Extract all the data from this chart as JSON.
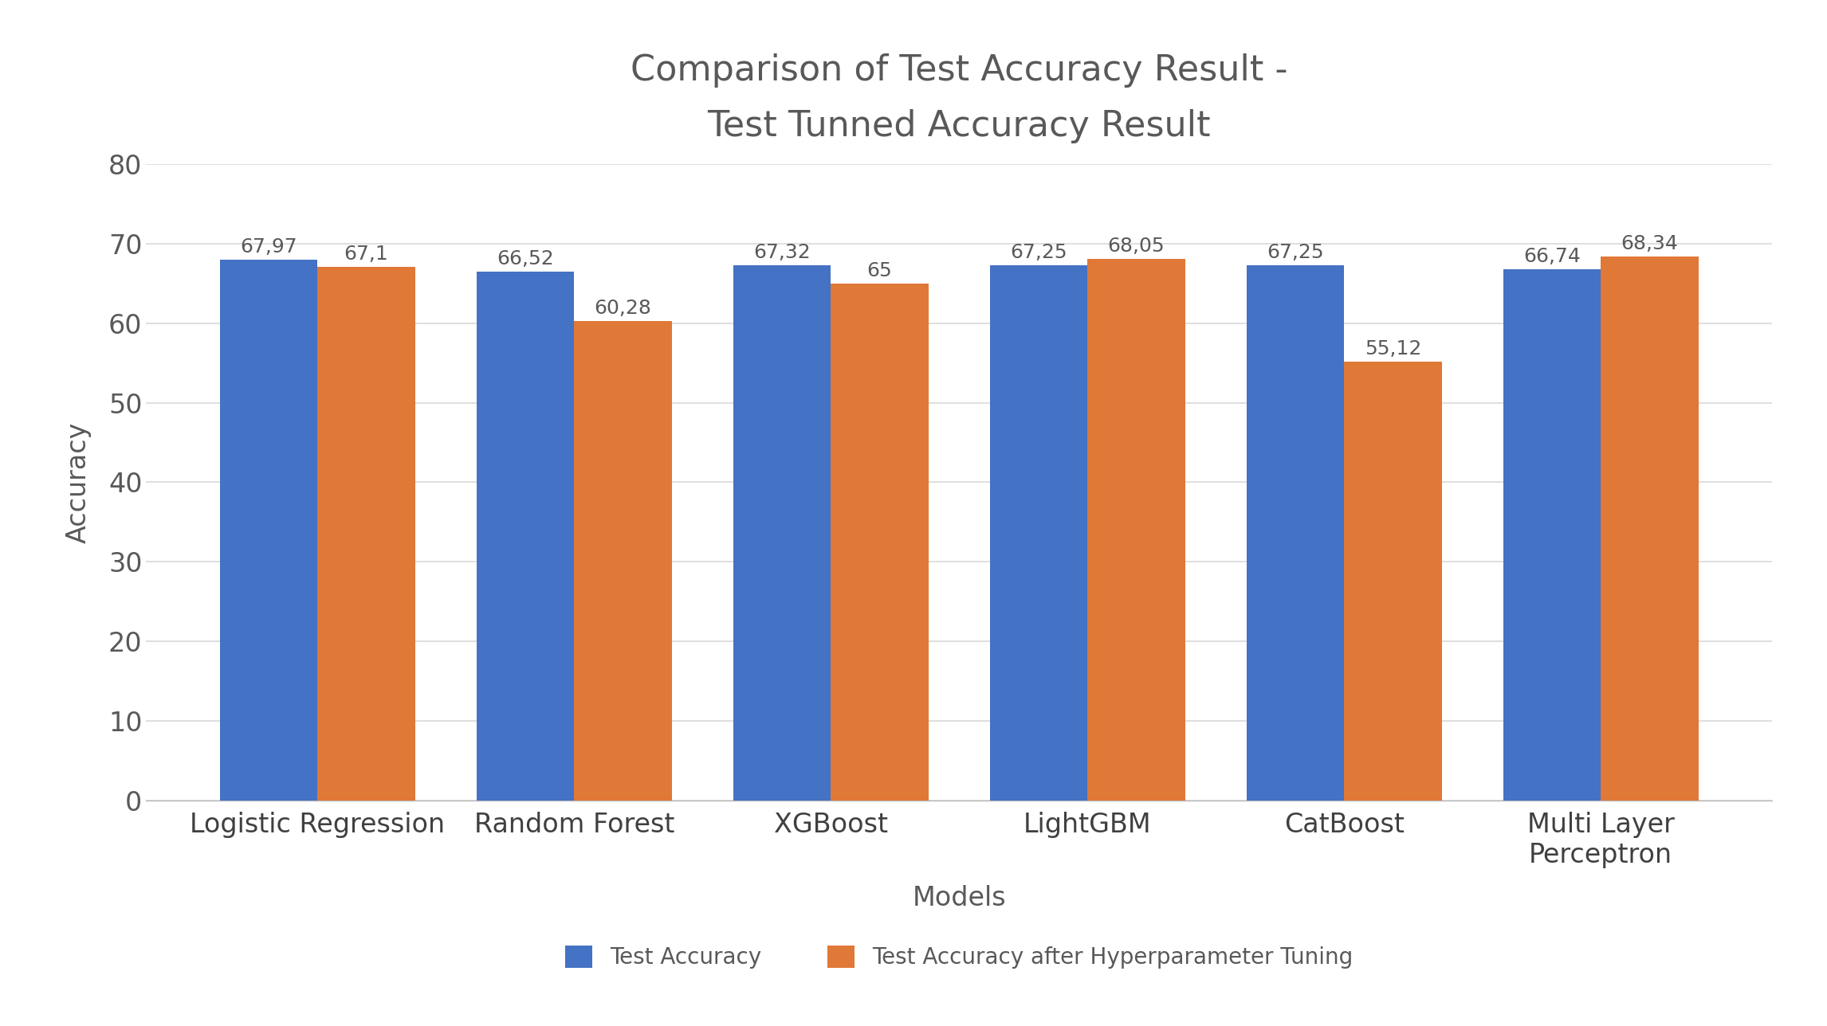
{
  "title": "Comparison of Test Accuracy Result -\nTest Tunned Accuracy Result",
  "xlabel": "Models",
  "ylabel": "Accuracy",
  "categories": [
    "Logistic Regression",
    "Random Forest",
    "XGBoost",
    "LightGBM",
    "CatBoost",
    "Multi Layer\nPerceptron"
  ],
  "test_accuracy": [
    67.97,
    66.52,
    67.32,
    67.25,
    67.25,
    66.74
  ],
  "tuned_accuracy": [
    67.1,
    60.28,
    65.0,
    68.05,
    55.12,
    68.34
  ],
  "test_accuracy_labels": [
    "67,97",
    "66,52",
    "67,32",
    "67,25",
    "67,25",
    "66,74"
  ],
  "tuned_accuracy_labels": [
    "67,1",
    "60,28",
    "65",
    "68,05",
    "55,12",
    "68,34"
  ],
  "bar_color_blue": "#4472C4",
  "bar_color_orange": "#E07837",
  "legend_label_blue": "Test Accuracy",
  "legend_label_orange": "Test Accuracy after Hyperparameter Tuning",
  "ylim": [
    0,
    80
  ],
  "yticks": [
    0,
    10,
    20,
    30,
    40,
    50,
    60,
    70,
    80
  ],
  "background_color": "#ffffff",
  "grid_color": "#d9d9d9",
  "title_fontsize": 32,
  "axis_label_fontsize": 24,
  "tick_fontsize": 24,
  "legend_fontsize": 20,
  "bar_label_fontsize": 18,
  "tick_color": "#595959",
  "label_color": "#595959",
  "title_color": "#595959",
  "bar_text_color": "#595959",
  "xticklabel_color": "#404040",
  "bar_width": 0.38
}
